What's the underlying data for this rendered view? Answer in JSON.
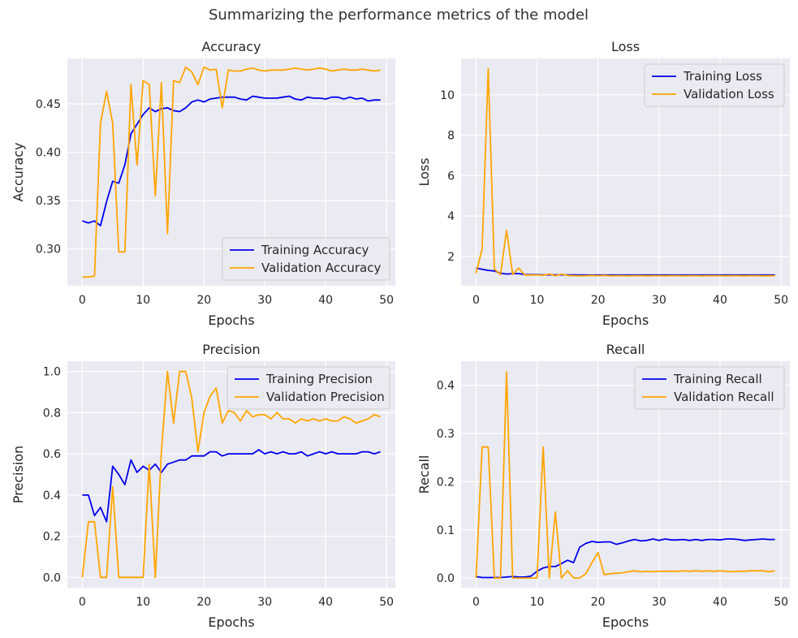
{
  "suptitle": "Summarizing the performance metrics of the model",
  "colors": {
    "training": "#0000ee",
    "validation": "#ffa500",
    "background": "#eaeaf2",
    "grid": "#ffffff"
  },
  "chart_data": [
    {
      "type": "line",
      "title": "Accuracy",
      "xlabel": "Epochs",
      "ylabel": "Accuracy",
      "xlim": [
        -2.45,
        51.45
      ],
      "ylim": [
        0.262,
        0.497
      ],
      "xticks": [
        0,
        10,
        20,
        30,
        40,
        50
      ],
      "yticks": [
        0.3,
        0.35,
        0.4,
        0.45
      ],
      "ytick_labels": [
        "0.30",
        "0.35",
        "0.40",
        "0.45"
      ],
      "legend": "lower-right",
      "grid": true,
      "series": [
        {
          "name": "Training Accuracy",
          "color": "#0000ee",
          "values": [
            0.329,
            0.327,
            0.329,
            0.324,
            0.349,
            0.37,
            0.368,
            0.387,
            0.419,
            0.429,
            0.439,
            0.446,
            0.442,
            0.445,
            0.446,
            0.443,
            0.442,
            0.446,
            0.452,
            0.454,
            0.452,
            0.455,
            0.456,
            0.457,
            0.457,
            0.457,
            0.455,
            0.454,
            0.458,
            0.457,
            0.456,
            0.456,
            0.456,
            0.457,
            0.458,
            0.455,
            0.454,
            0.457,
            0.456,
            0.456,
            0.455,
            0.457,
            0.457,
            0.455,
            0.457,
            0.455,
            0.456,
            0.453,
            0.454,
            0.454
          ]
        },
        {
          "name": "Validation Accuracy",
          "color": "#ffa500",
          "values": [
            0.271,
            0.271,
            0.272,
            0.43,
            0.463,
            0.43,
            0.297,
            0.297,
            0.47,
            0.387,
            0.474,
            0.47,
            0.355,
            0.472,
            0.316,
            0.474,
            0.472,
            0.488,
            0.483,
            0.47,
            0.488,
            0.485,
            0.486,
            0.446,
            0.485,
            0.484,
            0.484,
            0.486,
            0.487,
            0.485,
            0.484,
            0.485,
            0.485,
            0.485,
            0.486,
            0.487,
            0.486,
            0.485,
            0.486,
            0.487,
            0.486,
            0.484,
            0.485,
            0.486,
            0.485,
            0.485,
            0.486,
            0.485,
            0.484,
            0.485
          ]
        }
      ]
    },
    {
      "type": "line",
      "title": "Loss",
      "xlabel": "Epochs",
      "ylabel": "Loss",
      "xlim": [
        -2.45,
        51.45
      ],
      "ylim": [
        0.55,
        11.8
      ],
      "xticks": [
        0,
        10,
        20,
        30,
        40,
        50
      ],
      "yticks": [
        2,
        4,
        6,
        8,
        10
      ],
      "ytick_labels": [
        "2",
        "4",
        "6",
        "8",
        "10"
      ],
      "legend": "upper-right",
      "grid": true,
      "series": [
        {
          "name": "Training Loss",
          "color": "#0000ee",
          "values": [
            1.42,
            1.36,
            1.31,
            1.28,
            1.17,
            1.13,
            1.15,
            1.15,
            1.11,
            1.1,
            1.1,
            1.09,
            1.09,
            1.09,
            1.09,
            1.09,
            1.09,
            1.08,
            1.08,
            1.08,
            1.08,
            1.08,
            1.08,
            1.08,
            1.08,
            1.08,
            1.08,
            1.08,
            1.08,
            1.08,
            1.08,
            1.08,
            1.08,
            1.08,
            1.08,
            1.08,
            1.08,
            1.08,
            1.08,
            1.08,
            1.08,
            1.08,
            1.08,
            1.08,
            1.08,
            1.08,
            1.08,
            1.08,
            1.08,
            1.08
          ]
        },
        {
          "name": "Validation Loss",
          "color": "#ffa500",
          "values": [
            1.17,
            2.38,
            11.29,
            1.37,
            1.1,
            3.3,
            1.11,
            1.42,
            1.08,
            1.08,
            1.09,
            1.07,
            1.13,
            1.05,
            1.12,
            1.06,
            1.05,
            1.04,
            1.05,
            1.06,
            1.05,
            1.06,
            1.04,
            1.05,
            1.05,
            1.04,
            1.05,
            1.05,
            1.04,
            1.05,
            1.05,
            1.04,
            1.05,
            1.05,
            1.04,
            1.05,
            1.05,
            1.04,
            1.05,
            1.05,
            1.05,
            1.04,
            1.05,
            1.05,
            1.04,
            1.05,
            1.05,
            1.04,
            1.04,
            1.05
          ]
        }
      ]
    },
    {
      "type": "line",
      "title": "Precision",
      "xlabel": "Epochs",
      "ylabel": "Precision",
      "xlim": [
        -2.45,
        51.45
      ],
      "ylim": [
        -0.05,
        1.05
      ],
      "xticks": [
        0,
        10,
        20,
        30,
        40,
        50
      ],
      "yticks": [
        0.0,
        0.2,
        0.4,
        0.6,
        0.8,
        1.0
      ],
      "ytick_labels": [
        "0.0",
        "0.2",
        "0.4",
        "0.6",
        "0.8",
        "1.0"
      ],
      "legend": "upper-right",
      "grid": true,
      "series": [
        {
          "name": "Training Precision",
          "color": "#0000ee",
          "values": [
            0.4,
            0.4,
            0.3,
            0.34,
            0.27,
            0.54,
            0.5,
            0.45,
            0.57,
            0.51,
            0.54,
            0.52,
            0.55,
            0.51,
            0.55,
            0.56,
            0.57,
            0.57,
            0.59,
            0.59,
            0.59,
            0.61,
            0.61,
            0.59,
            0.6,
            0.6,
            0.6,
            0.6,
            0.6,
            0.62,
            0.6,
            0.61,
            0.6,
            0.61,
            0.6,
            0.6,
            0.61,
            0.59,
            0.6,
            0.61,
            0.6,
            0.61,
            0.6,
            0.6,
            0.6,
            0.6,
            0.61,
            0.61,
            0.6,
            0.61
          ]
        },
        {
          "name": "Validation Precision",
          "color": "#ffa500",
          "values": [
            0.0,
            0.27,
            0.27,
            0.0,
            0.0,
            0.44,
            0.0,
            0.0,
            0.0,
            0.0,
            0.0,
            0.55,
            0.0,
            0.61,
            1.0,
            0.75,
            1.0,
            1.0,
            0.87,
            0.61,
            0.8,
            0.88,
            0.92,
            0.75,
            0.81,
            0.8,
            0.76,
            0.81,
            0.78,
            0.79,
            0.79,
            0.77,
            0.8,
            0.77,
            0.77,
            0.75,
            0.77,
            0.76,
            0.77,
            0.76,
            0.77,
            0.76,
            0.76,
            0.78,
            0.77,
            0.75,
            0.76,
            0.77,
            0.79,
            0.78
          ]
        }
      ]
    },
    {
      "type": "line",
      "title": "Recall",
      "xlabel": "Epochs",
      "ylabel": "Recall",
      "xlim": [
        -2.45,
        51.45
      ],
      "ylim": [
        -0.02,
        0.45
      ],
      "xticks": [
        0,
        10,
        20,
        30,
        40,
        50
      ],
      "yticks": [
        0.0,
        0.1,
        0.2,
        0.3,
        0.4
      ],
      "ytick_labels": [
        "0.0",
        "0.1",
        "0.2",
        "0.3",
        "0.4"
      ],
      "legend": "upper-right",
      "grid": true,
      "series": [
        {
          "name": "Training Recall",
          "color": "#0000ee",
          "values": [
            0.003,
            0.001,
            0.001,
            0.001,
            0.001,
            0.002,
            0.003,
            0.002,
            0.002,
            0.004,
            0.014,
            0.021,
            0.024,
            0.024,
            0.03,
            0.037,
            0.032,
            0.064,
            0.072,
            0.076,
            0.074,
            0.075,
            0.075,
            0.07,
            0.073,
            0.077,
            0.08,
            0.077,
            0.078,
            0.081,
            0.078,
            0.081,
            0.079,
            0.079,
            0.08,
            0.078,
            0.08,
            0.078,
            0.08,
            0.08,
            0.079,
            0.081,
            0.081,
            0.08,
            0.078,
            0.079,
            0.08,
            0.081,
            0.08,
            0.08
          ]
        },
        {
          "name": "Validation Recall",
          "color": "#ffa500",
          "values": [
            0.0,
            0.272,
            0.272,
            0.0,
            0.0,
            0.428,
            0.0,
            0.0,
            0.0,
            0.0,
            0.0,
            0.272,
            0.0,
            0.137,
            0.0,
            0.015,
            0.0,
            0.0,
            0.009,
            0.032,
            0.053,
            0.007,
            0.009,
            0.01,
            0.011,
            0.013,
            0.015,
            0.013,
            0.014,
            0.013,
            0.014,
            0.014,
            0.014,
            0.014,
            0.015,
            0.014,
            0.015,
            0.014,
            0.015,
            0.014,
            0.015,
            0.014,
            0.013,
            0.014,
            0.014,
            0.015,
            0.015,
            0.015,
            0.013,
            0.015
          ]
        }
      ]
    }
  ]
}
